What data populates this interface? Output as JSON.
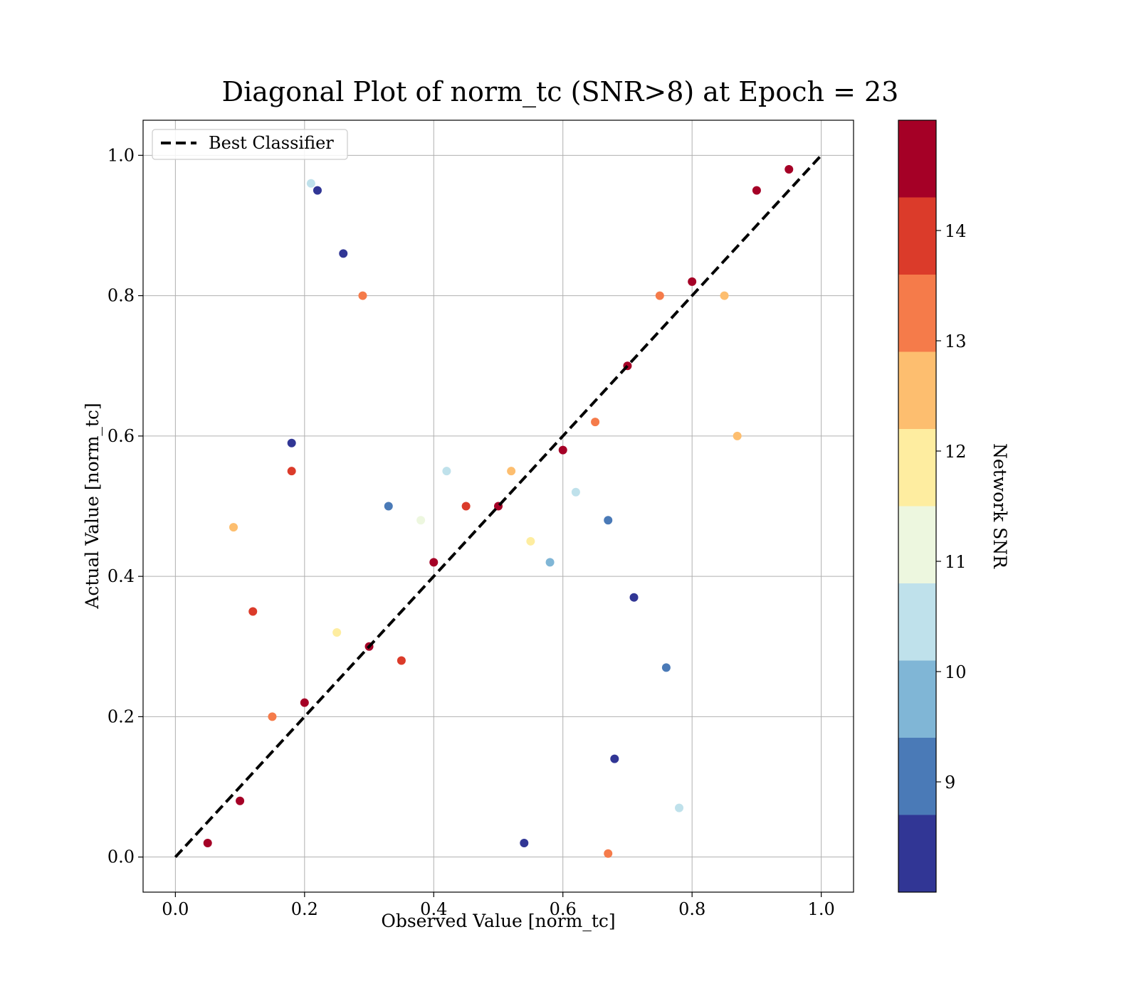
{
  "chart_data": {
    "type": "scatter",
    "title": "Diagonal Plot of norm_tc (SNR>8) at Epoch = 23",
    "xlabel": "Observed Value [norm_tc]",
    "ylabel": "Actual Value [norm_tc]",
    "xlim": [
      -0.05,
      1.05
    ],
    "ylim": [
      -0.05,
      1.05
    ],
    "grid": true,
    "x_ticks": [
      0.0,
      0.2,
      0.4,
      0.6,
      0.8,
      1.0
    ],
    "y_ticks": [
      0.0,
      0.2,
      0.4,
      0.6,
      0.8,
      1.0
    ],
    "x_tick_labels": [
      "0.0",
      "0.2",
      "0.4",
      "0.6",
      "0.8",
      "1.0"
    ],
    "y_tick_labels": [
      "0.0",
      "0.2",
      "0.4",
      "0.6",
      "0.8",
      "1.0"
    ],
    "legend": {
      "placement": "upper-left",
      "entries": [
        "Best Classifier"
      ]
    },
    "reference_line": {
      "name": "Best Classifier",
      "style": "dashed",
      "color": "#000000",
      "points": [
        [
          0,
          0
        ],
        [
          1,
          1
        ]
      ]
    },
    "colorbar": {
      "label": "Network SNR",
      "range": [
        8,
        15
      ],
      "tick_values": [
        9,
        10,
        11,
        12,
        13,
        14
      ],
      "tick_labels": [
        "9",
        "10",
        "11",
        "12",
        "13",
        "14"
      ],
      "bins": [
        {
          "from": 8.0,
          "to": 8.7,
          "color": "#313695"
        },
        {
          "from": 8.7,
          "to": 9.4,
          "color": "#4a7ab7"
        },
        {
          "from": 9.4,
          "to": 10.1,
          "color": "#80b6d6"
        },
        {
          "from": 10.1,
          "to": 10.8,
          "color": "#bfe1eb"
        },
        {
          "from": 10.8,
          "to": 11.5,
          "color": "#edf7df"
        },
        {
          "from": 11.5,
          "to": 12.2,
          "color": "#feeda0"
        },
        {
          "from": 12.2,
          "to": 12.9,
          "color": "#fdbe6f"
        },
        {
          "from": 12.9,
          "to": 13.6,
          "color": "#f57b4a"
        },
        {
          "from": 13.6,
          "to": 14.3,
          "color": "#db3b2a"
        },
        {
          "from": 14.3,
          "to": 15.0,
          "color": "#a50026"
        }
      ]
    },
    "points": [
      {
        "x": 0.5,
        "y": 0.5,
        "snr": 14.8
      },
      {
        "x": 0.3,
        "y": 0.3,
        "snr": 14.6
      },
      {
        "x": 0.7,
        "y": 0.7,
        "snr": 14.9
      },
      {
        "x": 0.9,
        "y": 0.95,
        "snr": 14.9
      },
      {
        "x": 0.1,
        "y": 0.08,
        "snr": 14.7
      },
      {
        "x": 0.4,
        "y": 0.42,
        "snr": 14.5
      },
      {
        "x": 0.6,
        "y": 0.58,
        "snr": 14.8
      },
      {
        "x": 0.8,
        "y": 0.82,
        "snr": 14.6
      },
      {
        "x": 0.2,
        "y": 0.22,
        "snr": 14.9
      },
      {
        "x": 0.95,
        "y": 0.98,
        "snr": 14.4
      },
      {
        "x": 0.05,
        "y": 0.02,
        "snr": 14.3
      },
      {
        "x": 0.45,
        "y": 0.5,
        "snr": 14.1
      },
      {
        "x": 0.35,
        "y": 0.28,
        "snr": 13.8
      },
      {
        "x": 0.65,
        "y": 0.62,
        "snr": 13.5
      },
      {
        "x": 0.75,
        "y": 0.8,
        "snr": 13.2
      },
      {
        "x": 0.15,
        "y": 0.2,
        "snr": 13.0
      },
      {
        "x": 0.52,
        "y": 0.55,
        "snr": 12.7
      },
      {
        "x": 0.85,
        "y": 0.8,
        "snr": 12.4
      },
      {
        "x": 0.25,
        "y": 0.32,
        "snr": 12.0
      },
      {
        "x": 0.55,
        "y": 0.45,
        "snr": 11.6
      },
      {
        "x": 0.38,
        "y": 0.48,
        "snr": 11.1
      },
      {
        "x": 0.62,
        "y": 0.52,
        "snr": 10.7
      },
      {
        "x": 0.42,
        "y": 0.55,
        "snr": 10.2
      },
      {
        "x": 0.58,
        "y": 0.42,
        "snr": 9.8
      },
      {
        "x": 0.33,
        "y": 0.5,
        "snr": 9.3
      },
      {
        "x": 0.67,
        "y": 0.48,
        "snr": 9.0
      },
      {
        "x": 0.22,
        "y": 0.95,
        "snr": 8.6
      },
      {
        "x": 0.21,
        "y": 0.96,
        "snr": 10.2
      },
      {
        "x": 0.26,
        "y": 0.86,
        "snr": 8.4
      },
      {
        "x": 0.18,
        "y": 0.59,
        "snr": 8.5
      },
      {
        "x": 0.18,
        "y": 0.55,
        "snr": 13.9
      },
      {
        "x": 0.54,
        "y": 0.02,
        "snr": 8.3
      },
      {
        "x": 0.76,
        "y": 0.27,
        "snr": 9.0
      },
      {
        "x": 0.78,
        "y": 0.07,
        "snr": 10.6
      },
      {
        "x": 0.67,
        "y": 0.005,
        "snr": 12.9
      },
      {
        "x": 0.68,
        "y": 0.14,
        "snr": 8.4
      },
      {
        "x": 0.71,
        "y": 0.37,
        "snr": 8.5
      },
      {
        "x": 0.87,
        "y": 0.6,
        "snr": 12.8
      },
      {
        "x": 0.09,
        "y": 0.47,
        "snr": 12.3
      },
      {
        "x": 0.29,
        "y": 0.8,
        "snr": 13.2
      },
      {
        "x": 0.12,
        "y": 0.35,
        "snr": 14.0
      }
    ]
  }
}
